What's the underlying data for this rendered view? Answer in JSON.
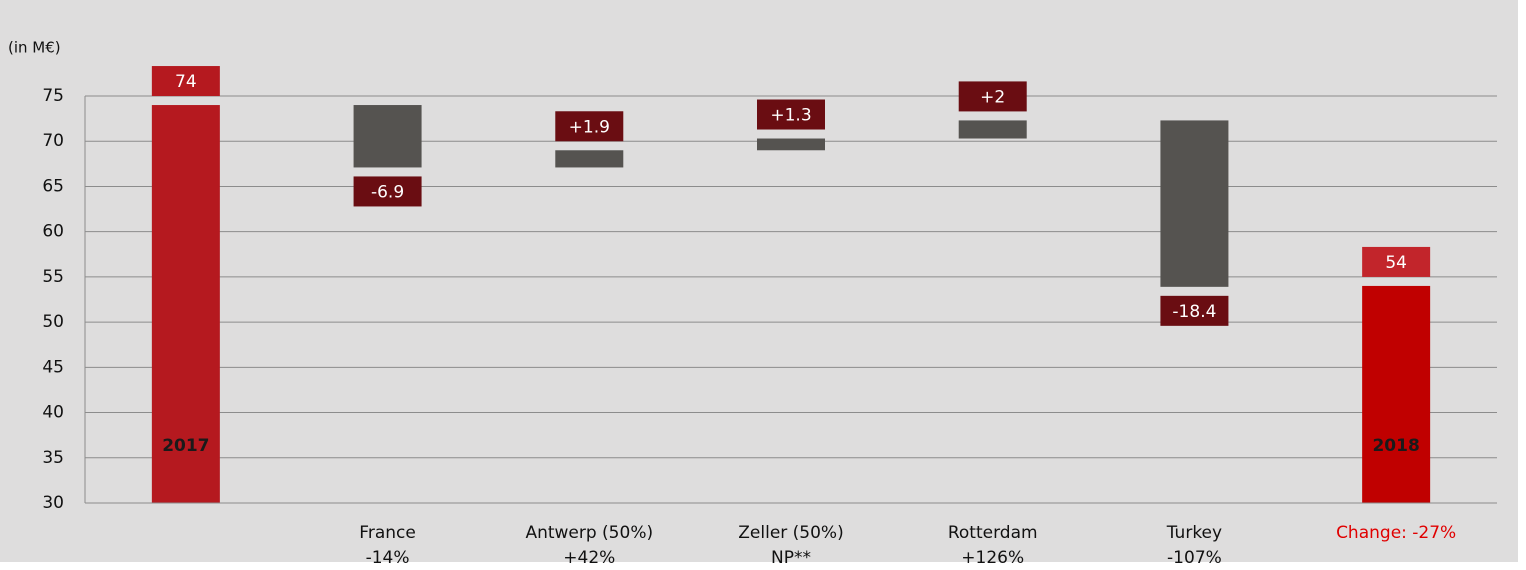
{
  "chart_data": {
    "type": "waterfall",
    "unit_label": "(in M€)",
    "categories": [
      "2017",
      "France",
      "Antwerp (50%)",
      "Zeller (50%)",
      "Rotterdam",
      "Turkey",
      "2018"
    ],
    "sublabels": [
      null,
      "-14%",
      "+42%",
      "NP**",
      "+126%",
      "-107%",
      "Change: -27%"
    ],
    "values": [
      74,
      -6.9,
      1.9,
      1.3,
      2,
      -18.4,
      54
    ],
    "value_labels": [
      "74",
      "-6.9",
      "+1.9",
      "+1.3",
      "+2",
      "-18.4",
      "54"
    ],
    "colors": [
      "#b5191f",
      "#555350",
      "#555350",
      "#555350",
      "#555350",
      "#555350",
      "#c00000"
    ],
    "label_colors": [
      "#b5191f",
      "#6a0d12",
      "#6a0d12",
      "#6a0d12",
      "#6a0d12",
      "#6a0d12",
      "#c2252b"
    ],
    "change_color": "#e00000",
    "ylim": [
      30,
      75
    ],
    "yticks": [
      30,
      35,
      40,
      45,
      50,
      55,
      60,
      65,
      70,
      75
    ],
    "grid": true
  }
}
